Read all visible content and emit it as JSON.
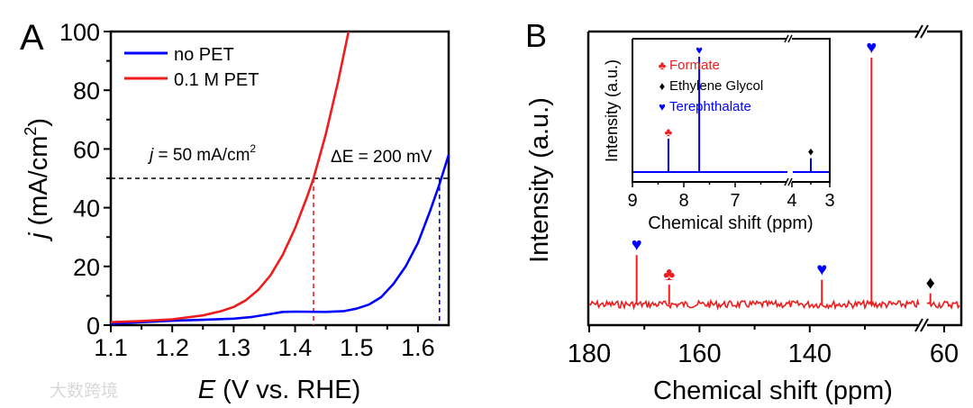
{
  "colors": {
    "blue": "#0000ff",
    "red": "#ee1c1c",
    "black": "#000000"
  },
  "chart_data": [
    {
      "panel_label": "A",
      "type": "line",
      "xlabel_italic": "E",
      "xlabel_rest": " (V vs. RHE)",
      "ylabel_italic": "j",
      "ylabel_rest": " (mA/cm",
      "ylabel_sup": "2",
      "ylabel_close": ")",
      "xlim": [
        1.1,
        1.65
      ],
      "ylim": [
        0,
        100
      ],
      "xticks": [
        "1.1",
        "1.2",
        "1.3",
        "1.4",
        "1.5",
        "1.6"
      ],
      "yticks": [
        "0",
        "20",
        "40",
        "60",
        "80",
        "100"
      ],
      "legend_placement": "top-left",
      "series": [
        {
          "name": "no PET",
          "color": "#0000ff",
          "x": [
            1.1,
            1.15,
            1.2,
            1.25,
            1.3,
            1.33,
            1.36,
            1.38,
            1.4,
            1.45,
            1.48,
            1.5,
            1.52,
            1.54,
            1.56,
            1.58,
            1.6,
            1.62,
            1.635,
            1.65
          ],
          "y": [
            0.5,
            1.0,
            1.5,
            1.8,
            2.2,
            2.8,
            3.8,
            4.5,
            4.6,
            4.5,
            4.8,
            5.6,
            7.0,
            9.5,
            14,
            20,
            28,
            39,
            48,
            58
          ]
        },
        {
          "name": "0.1 M PET",
          "color": "#ee1c1c",
          "x": [
            1.1,
            1.15,
            1.2,
            1.25,
            1.28,
            1.3,
            1.32,
            1.34,
            1.36,
            1.38,
            1.4,
            1.42,
            1.43,
            1.45,
            1.47,
            1.487
          ],
          "y": [
            1.0,
            1.4,
            2.0,
            3.3,
            4.8,
            6.2,
            8.5,
            12,
            17,
            24,
            33,
            44,
            50,
            65,
            83,
            100
          ]
        }
      ],
      "annotations": {
        "j_text_italic": "j",
        "j_text_rest": " = 50 mA/cm",
        "j_text_sup": "2",
        "delta_text": "ΔE = 200 mV",
        "hline_y": 50,
        "vline_red_x": 1.43,
        "vline_blue_x": 1.635
      }
    },
    {
      "panel_label": "B",
      "type": "line",
      "xlabel": "Chemical shift (ppm)",
      "ylabel": "Intensity (a.u.)",
      "xlim_left_segment": [
        180,
        125
      ],
      "xlim_right_segment": [
        64,
        57
      ],
      "xticks": [
        "180",
        "160",
        "140",
        "60"
      ],
      "series_color": "#ee1c1c",
      "peaks": [
        {
          "ppm": 171.4,
          "rel_height": 0.2,
          "marker": "♥",
          "species": "Terephthalate"
        },
        {
          "ppm": 165.5,
          "rel_height": 0.08,
          "marker": "♣",
          "species": "Formate"
        },
        {
          "ppm": 137.8,
          "rel_height": 0.1,
          "marker": "♥",
          "species": "Terephthalate"
        },
        {
          "ppm": 128.8,
          "rel_height": 1.0,
          "marker": "♥",
          "species": "Terephthalate"
        },
        {
          "ppm": 62.5,
          "rel_height": 0.045,
          "marker": "♦",
          "species": "Ethylene Glycol"
        }
      ],
      "inset": {
        "type": "line",
        "xlabel": "Chemical shift (ppm)",
        "ylabel": "Intensity (a.u.)",
        "xticks": [
          "9",
          "8",
          "7",
          "4",
          "3"
        ],
        "series_color": "#0000ff",
        "peaks": [
          {
            "ppm": 8.3,
            "rel_height": 0.29,
            "marker": "♣",
            "color": "#ee1c1c"
          },
          {
            "ppm": 7.7,
            "rel_height": 1.0,
            "marker": "♥",
            "color": "#0000ff"
          },
          {
            "ppm": 3.5,
            "rel_height": 0.12,
            "marker": "♦",
            "color": "#000000"
          }
        ],
        "legend": [
          {
            "marker": "♣",
            "label": "Formate",
            "color": "#ee1c1c"
          },
          {
            "marker": "♦",
            "label": "Ethylene Glycol",
            "color": "#000000"
          },
          {
            "marker": "♥",
            "label": "Terephthalate",
            "color": "#0000ff"
          }
        ]
      }
    }
  ],
  "watermark": "大数跨境"
}
